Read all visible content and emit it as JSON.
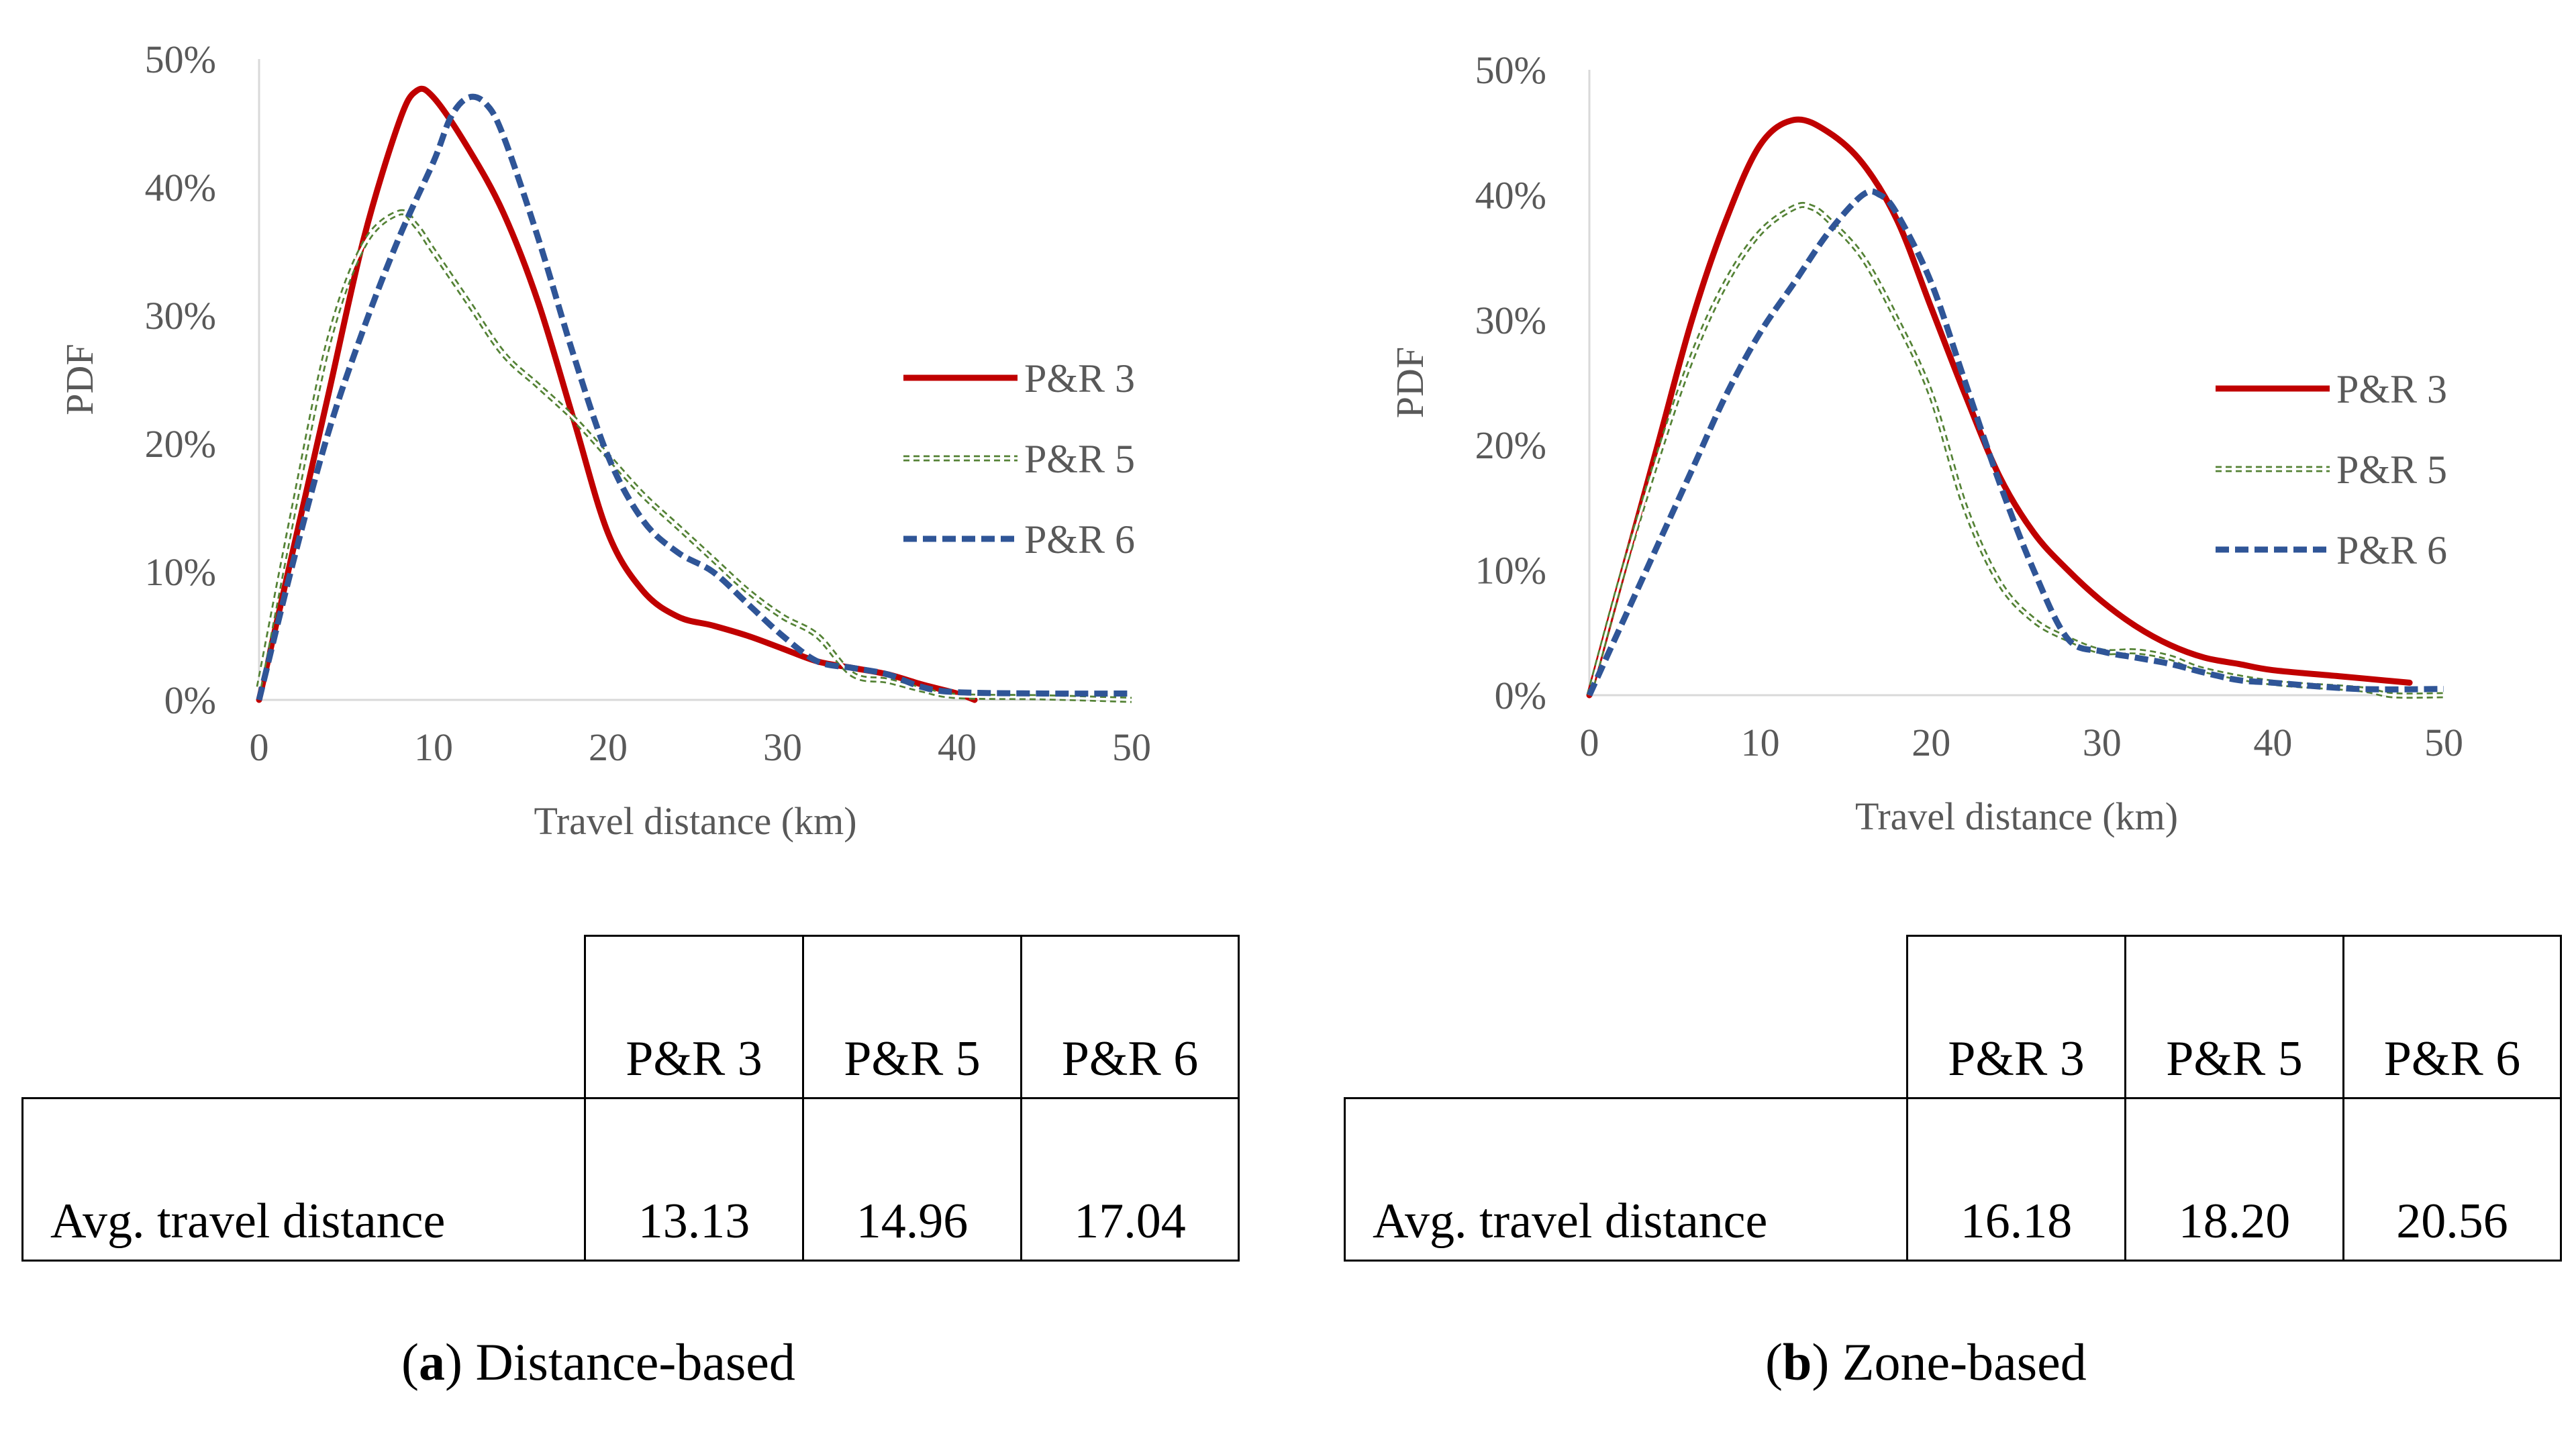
{
  "colors": {
    "pr3": "#C00000",
    "pr5": "#548235",
    "pr6": "#2F5597",
    "axis": "#D9D9D9",
    "text": "#595959"
  },
  "panels": [
    {
      "chart_data": {
        "type": "line",
        "title": "",
        "xlabel": "Travel distance (km)",
        "ylabel": "PDF",
        "xlim": [
          0,
          50
        ],
        "ylim": [
          0,
          50
        ],
        "x_ticks": [
          "0",
          "10",
          "20",
          "30",
          "40",
          "50"
        ],
        "y_ticks": [
          "0%",
          "10%",
          "20%",
          "30%",
          "40%",
          "50%"
        ],
        "legend_position": "right",
        "series": [
          {
            "name": "P&R 3",
            "style": "solid",
            "points": [
              [
                0,
                0
              ],
              [
                2,
                12
              ],
              [
                4,
                24
              ],
              [
                6,
                36
              ],
              [
                8,
                45
              ],
              [
                9,
                47.5
              ],
              [
                10,
                47
              ],
              [
                12,
                43
              ],
              [
                14,
                38
              ],
              [
                16,
                31
              ],
              [
                18,
                22
              ],
              [
                20,
                13
              ],
              [
                22,
                8.5
              ],
              [
                24,
                6.5
              ],
              [
                26,
                5.8
              ],
              [
                28,
                5
              ],
              [
                30,
                4
              ],
              [
                32,
                3
              ],
              [
                34,
                2.5
              ],
              [
                36,
                2
              ],
              [
                38,
                1.2
              ],
              [
                40,
                0.5
              ],
              [
                41,
                0
              ]
            ]
          },
          {
            "name": "P&R 5",
            "style": "dotted",
            "points": [
              [
                0,
                1
              ],
              [
                2,
                15
              ],
              [
                4,
                28
              ],
              [
                6,
                35.5
              ],
              [
                8,
                38
              ],
              [
                9,
                37
              ],
              [
                10,
                35
              ],
              [
                12,
                31
              ],
              [
                14,
                27
              ],
              [
                16,
                24.5
              ],
              [
                18,
                22
              ],
              [
                20,
                19
              ],
              [
                22,
                16
              ],
              [
                24,
                13.5
              ],
              [
                26,
                11
              ],
              [
                28,
                8.5
              ],
              [
                30,
                6.5
              ],
              [
                32,
                5
              ],
              [
                34,
                2
              ],
              [
                36,
                1.5
              ],
              [
                38,
                0.8
              ],
              [
                40,
                0.3
              ],
              [
                45,
                0.2
              ],
              [
                50,
                0
              ]
            ]
          },
          {
            "name": "P&R 6",
            "style": "dashed",
            "points": [
              [
                0,
                0
              ],
              [
                2,
                11
              ],
              [
                4,
                21
              ],
              [
                6,
                29
              ],
              [
                8,
                36
              ],
              [
                10,
                42
              ],
              [
                11,
                45.5
              ],
              [
                12,
                47
              ],
              [
                13,
                46.5
              ],
              [
                14,
                44
              ],
              [
                16,
                36
              ],
              [
                18,
                27
              ],
              [
                20,
                19
              ],
              [
                22,
                14
              ],
              [
                24,
                11.5
              ],
              [
                26,
                10
              ],
              [
                28,
                7.5
              ],
              [
                30,
                5
              ],
              [
                32,
                3
              ],
              [
                34,
                2.5
              ],
              [
                36,
                2
              ],
              [
                38,
                1
              ],
              [
                40,
                0.6
              ],
              [
                45,
                0.5
              ],
              [
                50,
                0.5
              ]
            ]
          }
        ]
      },
      "table": {
        "headers": [
          "P&R 3",
          "P&R 5",
          "P&R 6"
        ],
        "row_label": "Avg. travel distance",
        "values": [
          "13.13",
          "14.96",
          "17.04"
        ]
      },
      "caption": {
        "letter": "a",
        "text": "Distance-based"
      }
    },
    {
      "chart_data": {
        "type": "line",
        "title": "",
        "xlabel": "Travel distance (km)",
        "ylabel": "PDF",
        "xlim": [
          0,
          50
        ],
        "ylim": [
          0,
          50
        ],
        "x_ticks": [
          "0",
          "10",
          "20",
          "30",
          "40",
          "50"
        ],
        "y_ticks": [
          "0%",
          "10%",
          "20%",
          "30%",
          "40%",
          "50%"
        ],
        "legend_position": "right",
        "series": [
          {
            "name": "P&R 3",
            "style": "solid",
            "points": [
              [
                0,
                0
              ],
              [
                2,
                10
              ],
              [
                4,
                20
              ],
              [
                6,
                30
              ],
              [
                8,
                38
              ],
              [
                10,
                44
              ],
              [
                12,
                46
              ],
              [
                14,
                45
              ],
              [
                16,
                42.5
              ],
              [
                18,
                38
              ],
              [
                20,
                31
              ],
              [
                22,
                24
              ],
              [
                24,
                17.5
              ],
              [
                26,
                13
              ],
              [
                28,
                10
              ],
              [
                30,
                7.5
              ],
              [
                32,
                5.5
              ],
              [
                34,
                4
              ],
              [
                36,
                3
              ],
              [
                38,
                2.5
              ],
              [
                40,
                2
              ],
              [
                44,
                1.5
              ],
              [
                48,
                1
              ]
            ]
          },
          {
            "name": "P&R 5",
            "style": "dotted",
            "points": [
              [
                0,
                0
              ],
              [
                2,
                10
              ],
              [
                4,
                19
              ],
              [
                6,
                27
              ],
              [
                8,
                33
              ],
              [
                10,
                37
              ],
              [
                12,
                39
              ],
              [
                13,
                39
              ],
              [
                14,
                38
              ],
              [
                16,
                35
              ],
              [
                18,
                30
              ],
              [
                20,
                24
              ],
              [
                22,
                15
              ],
              [
                24,
                9
              ],
              [
                26,
                6
              ],
              [
                28,
                4.5
              ],
              [
                30,
                3.5
              ],
              [
                32,
                3.5
              ],
              [
                34,
                3
              ],
              [
                36,
                2
              ],
              [
                40,
                1
              ],
              [
                45,
                0.5
              ],
              [
                47,
                0
              ],
              [
                50,
                0
              ]
            ]
          },
          {
            "name": "P&R 6",
            "style": "dashed",
            "points": [
              [
                0,
                0
              ],
              [
                2,
                6
              ],
              [
                4,
                12
              ],
              [
                6,
                18
              ],
              [
                8,
                24
              ],
              [
                10,
                29
              ],
              [
                12,
                33
              ],
              [
                14,
                37
              ],
              [
                16,
                40
              ],
              [
                17,
                40
              ],
              [
                18,
                38.5
              ],
              [
                20,
                33
              ],
              [
                22,
                25
              ],
              [
                24,
                17
              ],
              [
                26,
                10
              ],
              [
                28,
                4.5
              ],
              [
                30,
                3.5
              ],
              [
                32,
                3
              ],
              [
                34,
                2.5
              ],
              [
                36,
                1.8
              ],
              [
                38,
                1.2
              ],
              [
                40,
                1
              ],
              [
                45,
                0.5
              ],
              [
                50,
                0.5
              ]
            ]
          }
        ]
      },
      "table": {
        "headers": [
          "P&R 3",
          "P&R 5",
          "P&R 6"
        ],
        "row_label": "Avg. travel distance",
        "values": [
          "16.18",
          "18.20",
          "20.56"
        ]
      },
      "caption": {
        "letter": "b",
        "text": "Zone-based"
      }
    }
  ]
}
